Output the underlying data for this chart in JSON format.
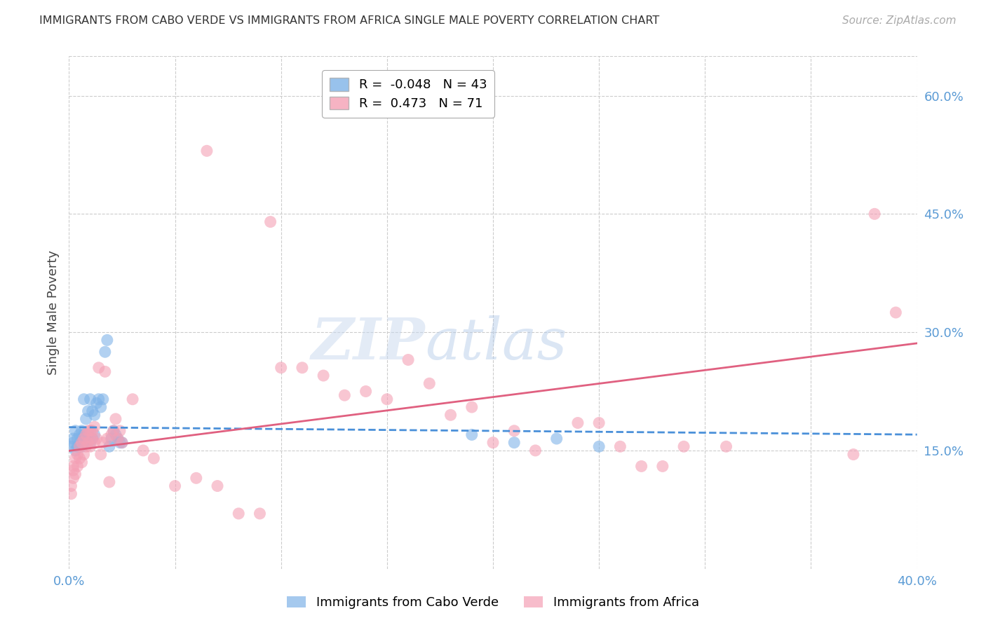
{
  "title": "IMMIGRANTS FROM CABO VERDE VS IMMIGRANTS FROM AFRICA SINGLE MALE POVERTY CORRELATION CHART",
  "source": "Source: ZipAtlas.com",
  "ylabel": "Single Male Poverty",
  "xlim": [
    0.0,
    0.4
  ],
  "ylim": [
    0.0,
    0.65
  ],
  "y_ticks_right": [
    0.15,
    0.3,
    0.45,
    0.6
  ],
  "y_tick_labels_right": [
    "15.0%",
    "30.0%",
    "45.0%",
    "60.0%"
  ],
  "cabo_verde_color": "#7fb3e8",
  "africa_color": "#f4a0b5",
  "cabo_verde_line_color": "#4a90d9",
  "africa_line_color": "#e06080",
  "cabo_verde_R": -0.048,
  "cabo_verde_N": 43,
  "africa_R": 0.473,
  "africa_N": 71,
  "legend_label_1": "Immigrants from Cabo Verde",
  "legend_label_2": "Immigrants from Africa",
  "watermark_zip": "ZIP",
  "watermark_atlas": "atlas",
  "background_color": "#ffffff",
  "grid_color": "#cccccc",
  "cabo_verde_x": [
    0.001,
    0.002,
    0.002,
    0.003,
    0.003,
    0.004,
    0.004,
    0.005,
    0.005,
    0.005,
    0.006,
    0.006,
    0.006,
    0.007,
    0.007,
    0.007,
    0.008,
    0.008,
    0.009,
    0.009,
    0.01,
    0.01,
    0.011,
    0.011,
    0.012,
    0.012,
    0.013,
    0.014,
    0.015,
    0.016,
    0.017,
    0.018,
    0.019,
    0.02,
    0.021,
    0.022,
    0.023,
    0.024,
    0.025,
    0.19,
    0.21,
    0.23,
    0.25
  ],
  "cabo_verde_y": [
    0.155,
    0.16,
    0.165,
    0.15,
    0.175,
    0.155,
    0.165,
    0.155,
    0.16,
    0.17,
    0.155,
    0.165,
    0.175,
    0.16,
    0.17,
    0.215,
    0.165,
    0.19,
    0.17,
    0.2,
    0.16,
    0.215,
    0.165,
    0.2,
    0.17,
    0.195,
    0.21,
    0.215,
    0.205,
    0.215,
    0.275,
    0.29,
    0.155,
    0.165,
    0.175,
    0.17,
    0.165,
    0.16,
    0.16,
    0.17,
    0.16,
    0.165,
    0.155
  ],
  "africa_x": [
    0.001,
    0.001,
    0.002,
    0.002,
    0.002,
    0.003,
    0.003,
    0.004,
    0.004,
    0.005,
    0.005,
    0.006,
    0.006,
    0.007,
    0.007,
    0.008,
    0.008,
    0.009,
    0.009,
    0.01,
    0.01,
    0.011,
    0.011,
    0.012,
    0.012,
    0.013,
    0.014,
    0.015,
    0.016,
    0.017,
    0.018,
    0.019,
    0.02,
    0.021,
    0.022,
    0.023,
    0.024,
    0.025,
    0.03,
    0.035,
    0.04,
    0.05,
    0.06,
    0.065,
    0.07,
    0.08,
    0.09,
    0.095,
    0.1,
    0.11,
    0.12,
    0.13,
    0.14,
    0.15,
    0.16,
    0.17,
    0.18,
    0.19,
    0.2,
    0.21,
    0.22,
    0.24,
    0.25,
    0.26,
    0.27,
    0.28,
    0.29,
    0.31,
    0.37,
    0.38,
    0.39
  ],
  "africa_y": [
    0.095,
    0.105,
    0.115,
    0.125,
    0.13,
    0.12,
    0.14,
    0.13,
    0.145,
    0.14,
    0.155,
    0.135,
    0.16,
    0.145,
    0.165,
    0.155,
    0.17,
    0.16,
    0.175,
    0.155,
    0.175,
    0.165,
    0.175,
    0.16,
    0.18,
    0.165,
    0.255,
    0.145,
    0.16,
    0.25,
    0.165,
    0.11,
    0.17,
    0.175,
    0.19,
    0.165,
    0.175,
    0.16,
    0.215,
    0.15,
    0.14,
    0.105,
    0.115,
    0.53,
    0.105,
    0.07,
    0.07,
    0.44,
    0.255,
    0.255,
    0.245,
    0.22,
    0.225,
    0.215,
    0.265,
    0.235,
    0.195,
    0.205,
    0.16,
    0.175,
    0.15,
    0.185,
    0.185,
    0.155,
    0.13,
    0.13,
    0.155,
    0.155,
    0.145,
    0.45,
    0.325
  ]
}
